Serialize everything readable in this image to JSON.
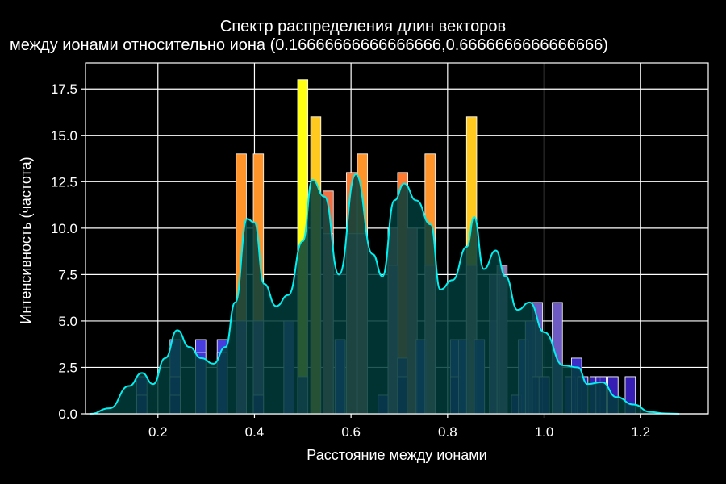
{
  "chart_data": {
    "type": "bar",
    "title_line1": "Спектр распределения длин векторов",
    "title_line2": "между ионами относительно иона (0.16666666666666666,0.6666666666666666)",
    "xlabel": "Расстояние между ионами",
    "ylabel": "Интенсивность (частота)",
    "xlim": [
      0.05,
      1.34
    ],
    "ylim": [
      0,
      18.9
    ],
    "xticks": [
      0.2,
      0.4,
      0.6,
      0.8,
      1.0,
      1.2
    ],
    "xtick_labels": [
      "0.2",
      "0.4",
      "0.6",
      "0.8",
      "1.0",
      "1.2"
    ],
    "yticks": [
      0,
      2.5,
      5,
      7.5,
      10,
      12.5,
      15,
      17.5
    ],
    "ytick_labels": [
      "0.0",
      "2.5",
      "5.0",
      "7.5",
      "10.0",
      "12.5",
      "15.0",
      "17.5"
    ],
    "grid": true,
    "background_color": "#000000",
    "bin_width": 0.0212,
    "series": [
      {
        "kind": "histogram-overlay",
        "bins": [
          {
            "x": 0.1667,
            "value": 2
          },
          {
            "x": 0.2357,
            "value": 4
          },
          {
            "x": 0.2887,
            "value": 4
          },
          {
            "x": 0.3333,
            "value": 4
          },
          {
            "x": 0.3727,
            "value": 14
          },
          {
            "x": 0.4082,
            "value": 14
          },
          {
            "x": 0.4714,
            "value": 5
          },
          {
            "x": 0.5,
            "value": 18
          },
          {
            "x": 0.527,
            "value": 16
          },
          {
            "x": 0.5528,
            "value": 12
          },
          {
            "x": 0.5774,
            "value": 4
          },
          {
            "x": 0.601,
            "value": 13
          },
          {
            "x": 0.6236,
            "value": 14
          },
          {
            "x": 0.6667,
            "value": 1
          },
          {
            "x": 0.6872,
            "value": 10
          },
          {
            "x": 0.7071,
            "value": 13
          },
          {
            "x": 0.7265,
            "value": 10
          },
          {
            "x": 0.7454,
            "value": 4
          },
          {
            "x": 0.7638,
            "value": 14
          },
          {
            "x": 0.8165,
            "value": 4
          },
          {
            "x": 0.8333,
            "value": 4
          },
          {
            "x": 0.8498,
            "value": 16
          },
          {
            "x": 0.866,
            "value": 4
          },
          {
            "x": 0.8975,
            "value": 5
          },
          {
            "x": 0.9129,
            "value": 8
          },
          {
            "x": 0.9428,
            "value": 1
          },
          {
            "x": 0.9574,
            "value": 4
          },
          {
            "x": 0.9718,
            "value": 5
          },
          {
            "x": 0.986,
            "value": 6
          },
          {
            "x": 1.0,
            "value": 2
          },
          {
            "x": 1.0274,
            "value": 6
          },
          {
            "x": 1.0541,
            "value": 2
          },
          {
            "x": 1.0672,
            "value": 3
          },
          {
            "x": 1.0801,
            "value": 2
          },
          {
            "x": 1.1055,
            "value": 2
          },
          {
            "x": 1.118,
            "value": 2
          },
          {
            "x": 1.1426,
            "value": 2
          },
          {
            "x": 1.1785,
            "value": 2
          }
        ]
      },
      {
        "kind": "histogram-base",
        "bins": [
          {
            "x": 0.1667,
            "value": 1
          },
          {
            "x": 0.2357,
            "value": 2
          },
          {
            "x": 0.2357,
            "value": 1
          },
          {
            "x": 0.2887,
            "value": 3.3
          },
          {
            "x": 0.3333,
            "value": 3.3
          },
          {
            "x": 0.3727,
            "value": 5
          },
          {
            "x": 0.4082,
            "value": 5
          },
          {
            "x": 0.4082,
            "value": 1
          },
          {
            "x": 0.4714,
            "value": 5
          },
          {
            "x": 0.5,
            "value": 2
          },
          {
            "x": 0.5528,
            "value": 9.7
          },
          {
            "x": 0.5774,
            "value": 4
          },
          {
            "x": 0.601,
            "value": 9.7
          },
          {
            "x": 0.6236,
            "value": 9.7
          },
          {
            "x": 0.6667,
            "value": 1
          },
          {
            "x": 0.6872,
            "value": 8
          },
          {
            "x": 0.7071,
            "value": 3
          },
          {
            "x": 0.7071,
            "value": 2
          },
          {
            "x": 0.7265,
            "value": 10
          },
          {
            "x": 0.7454,
            "value": 4
          },
          {
            "x": 0.7638,
            "value": 8
          },
          {
            "x": 0.8165,
            "value": 4
          },
          {
            "x": 0.8165,
            "value": 2
          },
          {
            "x": 0.8333,
            "value": 4
          },
          {
            "x": 0.8498,
            "value": 8
          },
          {
            "x": 0.866,
            "value": 4
          },
          {
            "x": 0.8975,
            "value": 7.5
          },
          {
            "x": 0.9129,
            "value": 7.5
          },
          {
            "x": 0.9428,
            "value": 1
          },
          {
            "x": 0.9574,
            "value": 4
          },
          {
            "x": 0.9718,
            "value": 5
          },
          {
            "x": 0.986,
            "value": 2
          },
          {
            "x": 1.0,
            "value": 2
          },
          {
            "x": 1.0541,
            "value": 2
          },
          {
            "x": 1.0672,
            "value": 3
          },
          {
            "x": 1.0801,
            "value": 2
          },
          {
            "x": 1.1055,
            "value": 2
          },
          {
            "x": 1.118,
            "value": 2
          },
          {
            "x": 1.1426,
            "value": 2
          },
          {
            "x": 1.1785,
            "value": 2
          }
        ]
      },
      {
        "kind": "kde",
        "color": "#00f0f0",
        "fill": "#003c3a",
        "x": [
          0.06,
          0.1,
          0.14,
          0.167,
          0.19,
          0.215,
          0.24,
          0.265,
          0.29,
          0.315,
          0.34,
          0.36,
          0.385,
          0.4,
          0.42,
          0.445,
          0.47,
          0.5,
          0.52,
          0.545,
          0.575,
          0.61,
          0.645,
          0.665,
          0.69,
          0.71,
          0.735,
          0.765,
          0.785,
          0.81,
          0.84,
          0.855,
          0.875,
          0.9,
          0.92,
          0.945,
          0.97,
          1.0,
          1.04,
          1.07,
          1.09,
          1.12,
          1.15,
          1.185,
          1.22,
          1.25,
          1.28
        ],
        "y": [
          0.0,
          0.3,
          1.5,
          2.2,
          1.6,
          3.0,
          4.5,
          3.6,
          3.0,
          2.7,
          3.6,
          6.0,
          10.5,
          10.3,
          7.0,
          5.8,
          6.4,
          9.3,
          12.6,
          11.7,
          7.5,
          12.9,
          8.6,
          7.4,
          11.5,
          12.4,
          11.5,
          10.2,
          6.7,
          7.2,
          9.0,
          10.6,
          7.8,
          8.8,
          7.4,
          5.6,
          6.0,
          4.4,
          2.6,
          2.5,
          1.6,
          1.7,
          0.9,
          0.5,
          0.1,
          0.02,
          0.0
        ]
      }
    ]
  }
}
